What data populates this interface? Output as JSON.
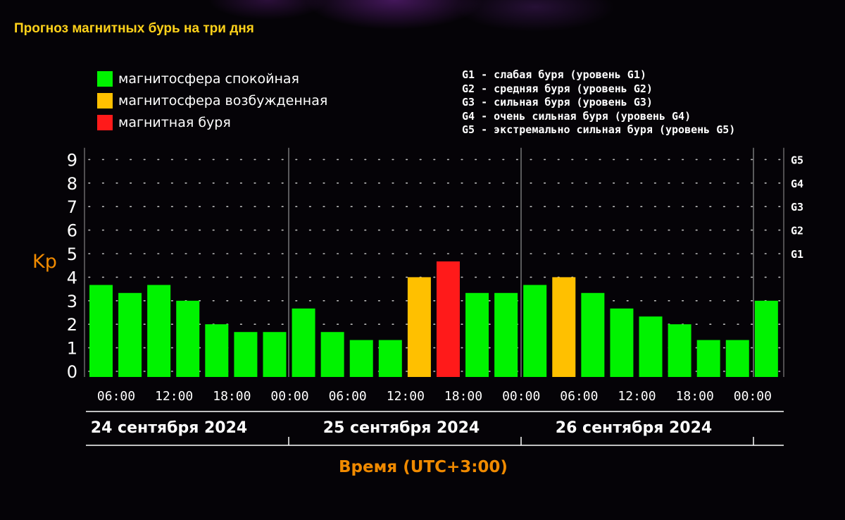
{
  "page_title": "Прогноз магнитных бурь на три дня",
  "legend": {
    "calm": {
      "label": "магнитосфера спокойная",
      "color": "#00f300"
    },
    "excited": {
      "label": "магнитосфера возбужденная",
      "color": "#ffc000"
    },
    "storm": {
      "label": "магнитная буря",
      "color": "#ff1a1a"
    }
  },
  "storm_levels": [
    "G1 - слабая буря (уровень G1)",
    "G2 - средняя буря (уровень G2)",
    "G3 - сильная буря (уровень G3)",
    "G4 - очень сильная буря (уровень G4)",
    "G5 - экстремально сильная буря (уровень G5)"
  ],
  "chart_data": {
    "type": "bar",
    "ylabel": "Kp",
    "xlabel": "Время (UTC+3:00)",
    "ylim": [
      0,
      9
    ],
    "y_ticks": [
      "0",
      "1",
      "2",
      "3",
      "4",
      "5",
      "6",
      "7",
      "8",
      "9"
    ],
    "right_ticks": [
      {
        "kp": 5,
        "label": "G1"
      },
      {
        "kp": 6,
        "label": "G2"
      },
      {
        "kp": 7,
        "label": "G3"
      },
      {
        "kp": 8,
        "label": "G4"
      },
      {
        "kp": 9,
        "label": "G5"
      }
    ],
    "time_ticks": [
      "06:00",
      "12:00",
      "18:00",
      "00:00",
      "06:00",
      "12:00",
      "18:00",
      "00:00",
      "06:00",
      "12:00",
      "18:00",
      "00:00"
    ],
    "days": [
      "24 сентября 2024",
      "25 сентября 2024",
      "26 сентября 2024"
    ],
    "grid": "dotted",
    "values": [
      3.67,
      3.33,
      3.67,
      3.0,
      2.0,
      1.67,
      1.67,
      2.67,
      1.67,
      1.33,
      1.33,
      4.0,
      4.67,
      3.33,
      3.33,
      3.67,
      4.0,
      3.33,
      2.67,
      2.33,
      2.0,
      1.33,
      1.33,
      3.0
    ],
    "levels": [
      "calm",
      "calm",
      "calm",
      "calm",
      "calm",
      "calm",
      "calm",
      "calm",
      "calm",
      "calm",
      "calm",
      "excited",
      "storm",
      "calm",
      "calm",
      "calm",
      "excited",
      "calm",
      "calm",
      "calm",
      "calm",
      "calm",
      "calm",
      "calm"
    ]
  }
}
